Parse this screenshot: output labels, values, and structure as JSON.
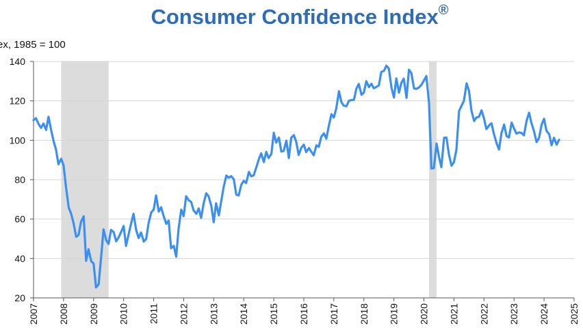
{
  "chart_data": {
    "type": "line",
    "title": "Consumer Confidence Index",
    "title_mark": "®",
    "ylabel": "ex, 1985 = 100",
    "xlabel": "",
    "xlim": [
      2007,
      2025
    ],
    "ylim": [
      20,
      140
    ],
    "yticks": [
      20,
      40,
      60,
      80,
      100,
      120,
      140
    ],
    "xticks": [
      "2007",
      "2008",
      "2009",
      "2010",
      "2011",
      "2012",
      "2013",
      "2014",
      "2015",
      "2016",
      "2017",
      "2018",
      "2019",
      "2020",
      "2021",
      "2022",
      "2023",
      "2024",
      "2025"
    ],
    "grid": "horizontal",
    "legend": "none",
    "line_color": "#3a8ff0",
    "shade_color": "#dcdcdc",
    "recessions": [
      [
        2007.92,
        2009.5
      ],
      [
        2020.17,
        2020.42
      ]
    ],
    "series": [
      {
        "x": [
          2007.0,
          2007.08,
          2007.17,
          2007.25,
          2007.33,
          2007.42,
          2007.5,
          2007.58,
          2007.67,
          2007.75,
          2007.83,
          2007.92,
          2008.0,
          2008.08,
          2008.17,
          2008.25,
          2008.33,
          2008.42,
          2008.5,
          2008.58,
          2008.67,
          2008.75,
          2008.83,
          2008.92,
          2009.0,
          2009.08,
          2009.17,
          2009.25,
          2009.33,
          2009.42,
          2009.5,
          2009.58,
          2009.67,
          2009.75,
          2009.83,
          2009.92,
          2010.0,
          2010.08,
          2010.17,
          2010.25,
          2010.33,
          2010.42,
          2010.5,
          2010.58,
          2010.67,
          2010.75,
          2010.83,
          2010.92,
          2011.0,
          2011.08,
          2011.17,
          2011.25,
          2011.33,
          2011.42,
          2011.5,
          2011.58,
          2011.67,
          2011.75,
          2011.83,
          2011.92,
          2012.0,
          2012.08,
          2012.17,
          2012.25,
          2012.33,
          2012.42,
          2012.5,
          2012.58,
          2012.67,
          2012.75,
          2012.83,
          2012.92,
          2013.0,
          2013.08,
          2013.17,
          2013.25,
          2013.33,
          2013.42,
          2013.5,
          2013.58,
          2013.67,
          2013.75,
          2013.83,
          2013.92,
          2014.0,
          2014.08,
          2014.17,
          2014.25,
          2014.33,
          2014.42,
          2014.5,
          2014.58,
          2014.67,
          2014.75,
          2014.83,
          2014.92,
          2015.0,
          2015.08,
          2015.17,
          2015.25,
          2015.33,
          2015.42,
          2015.5,
          2015.58,
          2015.67,
          2015.75,
          2015.83,
          2015.92,
          2016.0,
          2016.08,
          2016.17,
          2016.25,
          2016.33,
          2016.42,
          2016.5,
          2016.58,
          2016.67,
          2016.75,
          2016.83,
          2016.92,
          2017.0,
          2017.08,
          2017.17,
          2017.25,
          2017.33,
          2017.42,
          2017.5,
          2017.58,
          2017.67,
          2017.75,
          2017.83,
          2017.92,
          2018.0,
          2018.08,
          2018.17,
          2018.25,
          2018.33,
          2018.42,
          2018.5,
          2018.58,
          2018.67,
          2018.75,
          2018.83,
          2018.92,
          2019.0,
          2019.08,
          2019.17,
          2019.25,
          2019.33,
          2019.42,
          2019.5,
          2019.58,
          2019.67,
          2019.75,
          2019.83,
          2019.92,
          2020.0,
          2020.08,
          2020.17,
          2020.25,
          2020.33,
          2020.42,
          2020.5,
          2020.58,
          2020.67,
          2020.75,
          2020.83,
          2020.92,
          2021.0,
          2021.08,
          2021.17,
          2021.25,
          2021.33,
          2021.42,
          2021.5,
          2021.58,
          2021.67,
          2021.75,
          2021.83,
          2021.92,
          2022.0,
          2022.08,
          2022.17,
          2022.25,
          2022.33,
          2022.42,
          2022.5,
          2022.58,
          2022.67,
          2022.75,
          2022.83,
          2022.92,
          2023.0,
          2023.08,
          2023.17,
          2023.25,
          2023.33,
          2023.42,
          2023.5,
          2023.58,
          2023.67,
          2023.75,
          2023.83,
          2023.92,
          2024.0,
          2024.08,
          2024.17,
          2024.25,
          2024.33,
          2024.42,
          2024.5
        ],
        "y": [
          110.2,
          111.2,
          108.2,
          106.3,
          108.5,
          105.3,
          111.9,
          105.6,
          99.5,
          95.2,
          87.8,
          90.6,
          87.3,
          76.4,
          65.9,
          62.8,
          58.1,
          51.0,
          51.9,
          58.5,
          61.4,
          38.8,
          44.7,
          38.6,
          37.4,
          25.3,
          26.9,
          40.8,
          54.8,
          49.3,
          47.4,
          54.5,
          53.4,
          48.7,
          50.6,
          53.6,
          56.5,
          46.4,
          52.5,
          57.7,
          62.7,
          54.3,
          50.4,
          53.2,
          48.6,
          49.9,
          57.8,
          63.4,
          64.8,
          72.0,
          63.8,
          66.0,
          61.7,
          57.6,
          59.2,
          45.2,
          46.4,
          40.9,
          55.2,
          64.8,
          61.5,
          71.6,
          69.5,
          68.7,
          64.4,
          62.7,
          65.4,
          60.6,
          68.4,
          73.1,
          71.5,
          66.7,
          58.4,
          68.0,
          61.9,
          69.0,
          76.2,
          82.1,
          81.0,
          81.8,
          80.2,
          72.4,
          72.0,
          77.5,
          79.4,
          78.3,
          83.9,
          81.7,
          82.2,
          86.4,
          90.3,
          93.4,
          89.0,
          94.1,
          91.0,
          93.1,
          103.8,
          98.8,
          101.4,
          94.3,
          94.6,
          99.8,
          91.0,
          101.3,
          102.6,
          99.1,
          92.6,
          96.3,
          97.8,
          94.0,
          96.1,
          94.2,
          92.4,
          97.4,
          96.7,
          101.8,
          103.5,
          100.8,
          107.1,
          113.3,
          111.6,
          116.1,
          124.9,
          119.4,
          117.6,
          117.3,
          120.0,
          120.4,
          120.6,
          126.2,
          128.6,
          123.1,
          124.3,
          130.0,
          127.0,
          128.7,
          126.4,
          127.1,
          127.9,
          134.7,
          135.3,
          137.9,
          136.4,
          126.6,
          121.7,
          131.4,
          124.2,
          129.2,
          131.3,
          121.5,
          135.8,
          134.2,
          126.3,
          126.1,
          126.8,
          128.2,
          130.4,
          132.6,
          118.8,
          85.7,
          85.9,
          98.3,
          91.7,
          86.3,
          101.3,
          101.4,
          92.9,
          87.1,
          88.9,
          95.2,
          114.9,
          117.5,
          120.0,
          128.9,
          125.1,
          115.2,
          109.8,
          111.6,
          111.9,
          115.2,
          111.1,
          105.7,
          107.6,
          108.6,
          103.2,
          98.4,
          95.3,
          103.6,
          108.0,
          102.2,
          101.4,
          109.0,
          106.0,
          103.4,
          104.0,
          103.7,
          102.5,
          110.1,
          114.0,
          108.7,
          104.3,
          99.1,
          101.0,
          108.0,
          110.9,
          104.8,
          103.1,
          97.5,
          101.3,
          97.8,
          100.3
        ]
      }
    ]
  }
}
